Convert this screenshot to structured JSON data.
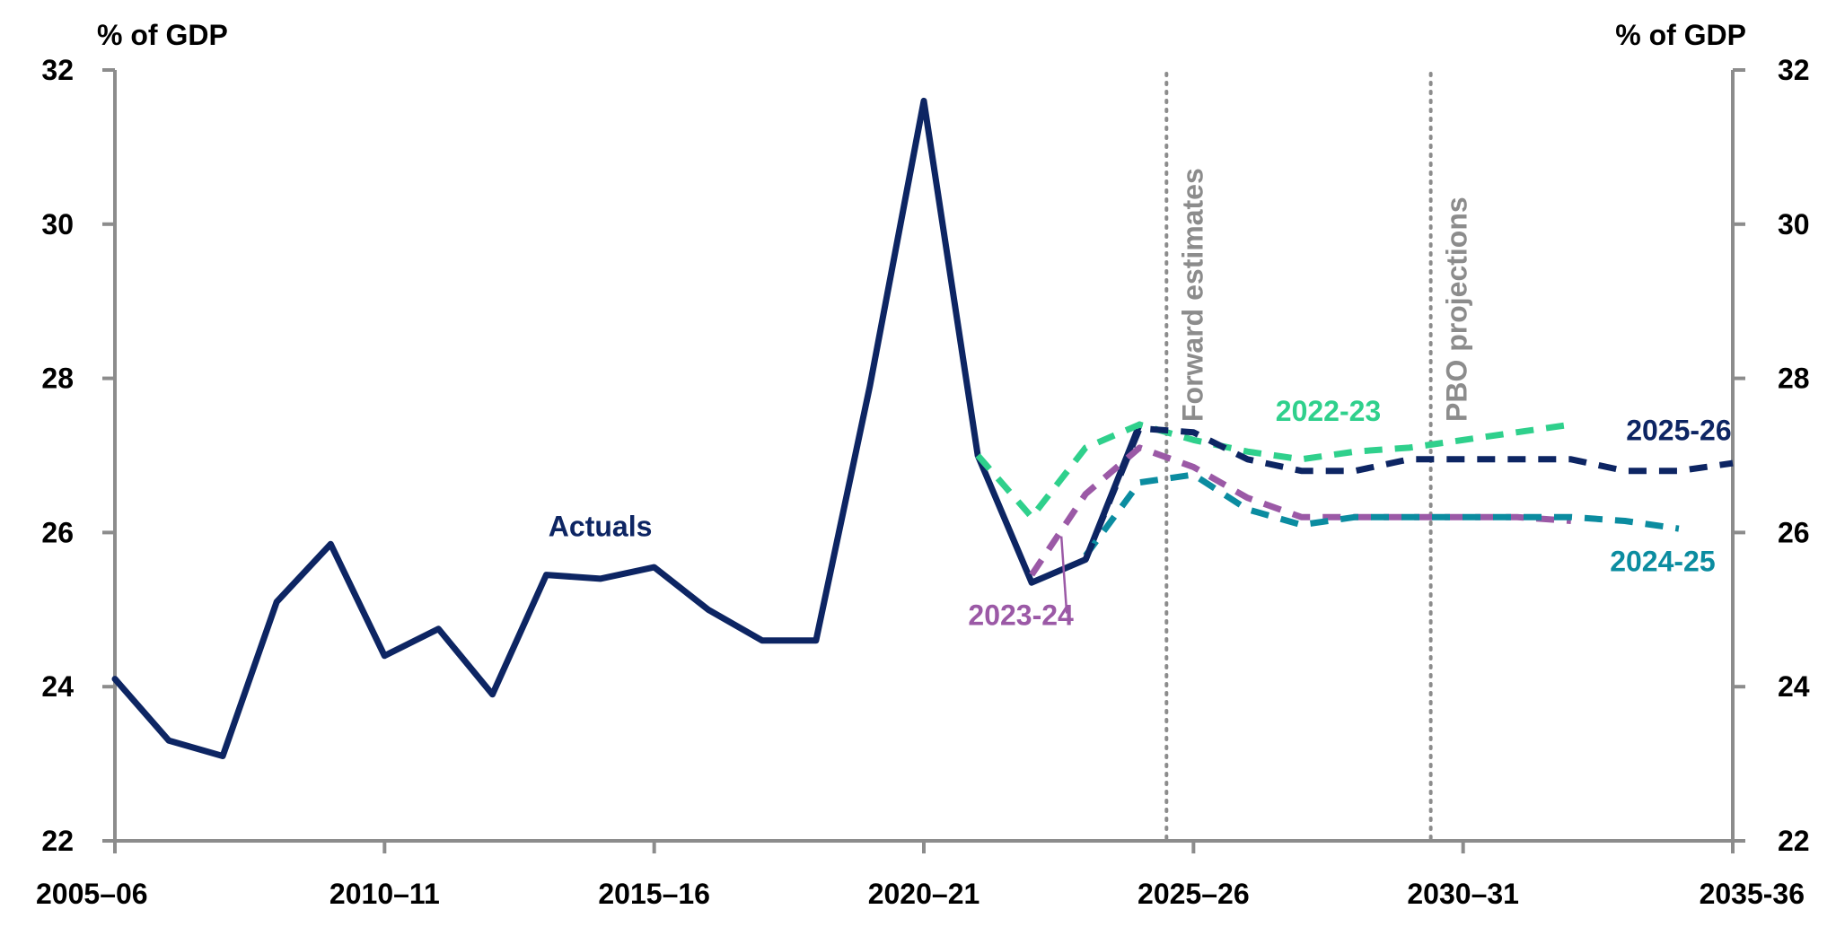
{
  "chart_data": {
    "type": "line",
    "title": "",
    "ylabel_left": "% of GDP",
    "ylabel_right": "% of GDP",
    "ylim": [
      22,
      32
    ],
    "yticks": [
      22,
      24,
      26,
      28,
      30,
      32
    ],
    "xlim": [
      2005,
      2035
    ],
    "xticks": [
      {
        "x": 2005,
        "label": "2005–06"
      },
      {
        "x": 2010,
        "label": "2010–11"
      },
      {
        "x": 2015,
        "label": "2015–16"
      },
      {
        "x": 2020,
        "label": "2020–21"
      },
      {
        "x": 2025,
        "label": "2025–26"
      },
      {
        "x": 2030,
        "label": "2030–31"
      },
      {
        "x": 2035,
        "label": "2035-36"
      }
    ],
    "grid": false,
    "series": [
      {
        "name": "Actuals",
        "color": "#0d2563",
        "dash": "solid",
        "points": [
          [
            2005,
            24.1
          ],
          [
            2006,
            23.3
          ],
          [
            2007,
            23.1
          ],
          [
            2008,
            25.1
          ],
          [
            2009,
            25.85
          ],
          [
            2010,
            24.4
          ],
          [
            2011,
            24.75
          ],
          [
            2012,
            23.9
          ],
          [
            2013,
            25.45
          ],
          [
            2014,
            25.4
          ],
          [
            2015,
            25.55
          ],
          [
            2016,
            25.0
          ],
          [
            2017,
            24.6
          ],
          [
            2018,
            24.6
          ],
          [
            2019,
            27.9
          ],
          [
            2020,
            31.6
          ],
          [
            2021,
            27.0
          ],
          [
            2022,
            25.35
          ],
          [
            2023,
            25.65
          ],
          [
            2024,
            27.4
          ]
        ]
      },
      {
        "name": "2022-23",
        "color": "#2fd08c",
        "dash": "dashed",
        "points": [
          [
            2021,
            27.0
          ],
          [
            2022,
            26.2
          ],
          [
            2023,
            27.1
          ],
          [
            2024,
            27.4
          ],
          [
            2025,
            27.2
          ],
          [
            2026,
            27.05
          ],
          [
            2027,
            26.95
          ],
          [
            2028,
            27.05
          ],
          [
            2029,
            27.1
          ],
          [
            2030,
            27.2
          ],
          [
            2031,
            27.3
          ],
          [
            2032,
            27.4
          ]
        ]
      },
      {
        "name": "2023-24",
        "color": "#9b59a6",
        "dash": "dashed",
        "points": [
          [
            2022,
            25.45
          ],
          [
            2023,
            26.5
          ],
          [
            2024,
            27.1
          ],
          [
            2025,
            26.85
          ],
          [
            2026,
            26.45
          ],
          [
            2027,
            26.2
          ],
          [
            2028,
            26.2
          ],
          [
            2029,
            26.2
          ],
          [
            2030,
            26.2
          ],
          [
            2031,
            26.2
          ],
          [
            2032,
            26.15
          ]
        ]
      },
      {
        "name": "2024-25",
        "color": "#0b8ca0",
        "dash": "dashed",
        "points": [
          [
            2023,
            25.7
          ],
          [
            2024,
            26.65
          ],
          [
            2025,
            26.75
          ],
          [
            2026,
            26.3
          ],
          [
            2027,
            26.1
          ],
          [
            2028,
            26.2
          ],
          [
            2029,
            26.2
          ],
          [
            2030,
            26.2
          ],
          [
            2031,
            26.2
          ],
          [
            2032,
            26.2
          ],
          [
            2033,
            26.15
          ],
          [
            2034,
            26.05
          ]
        ]
      },
      {
        "name": "2025-26",
        "color": "#0d2563",
        "dash": "dashed",
        "points": [
          [
            2023,
            25.65
          ],
          [
            2024,
            27.35
          ],
          [
            2025,
            27.3
          ],
          [
            2026,
            26.95
          ],
          [
            2027,
            26.8
          ],
          [
            2028,
            26.8
          ],
          [
            2029,
            26.95
          ],
          [
            2030,
            26.95
          ],
          [
            2031,
            26.95
          ],
          [
            2032,
            26.95
          ],
          [
            2033,
            26.8
          ],
          [
            2034,
            26.8
          ],
          [
            2035,
            26.9
          ]
        ]
      }
    ],
    "vertical_markers": [
      {
        "x": 2024.5,
        "label": "Forward estimates"
      },
      {
        "x": 2029.4,
        "label": "PBO projections"
      }
    ],
    "annotations": [
      {
        "text": "Actuals",
        "color": "#0d2563",
        "x": 2014.0,
        "y": 25.95
      },
      {
        "text": "2022-23",
        "color": "#2fd08c",
        "x": 2027.5,
        "y": 27.45
      },
      {
        "text": "2025-26",
        "color": "#0d2563",
        "x": 2034.0,
        "y": 27.2
      },
      {
        "text": "2024-25",
        "color": "#0b8ca0",
        "x": 2033.7,
        "y": 25.5
      },
      {
        "text": "2023-24",
        "color": "#9b59a6",
        "x": 2021.8,
        "y": 24.8
      }
    ],
    "leader_line": {
      "color": "#9b59a6",
      "from": [
        2022.65,
        24.95
      ],
      "to": [
        2022.55,
        25.95
      ]
    }
  }
}
